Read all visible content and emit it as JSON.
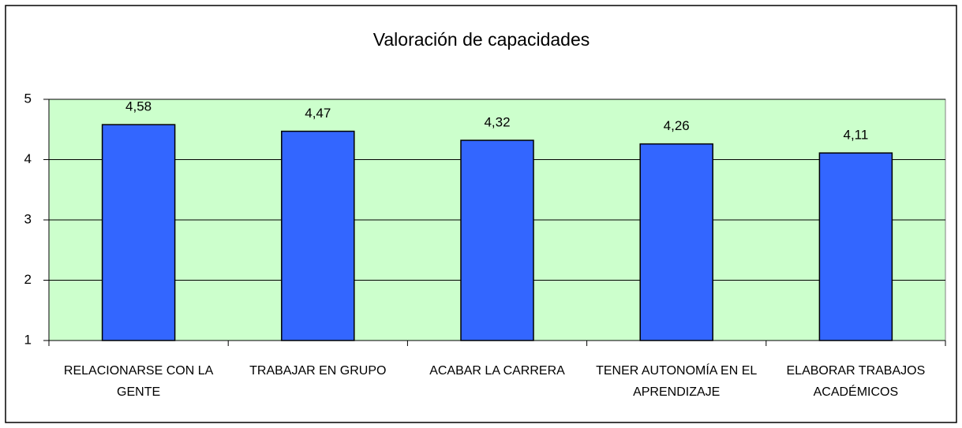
{
  "chart_data": {
    "type": "bar",
    "title": "Valoración de capacidades",
    "categories": [
      "RELACIONARSE CON LA GENTE",
      "TRABAJAR EN GRUPO",
      "ACABAR LA CARRERA",
      "TENER AUTONOMÍA EN EL APRENDIZAJE",
      "ELABORAR TRABAJOS ACADÉMICOS"
    ],
    "values": [
      4.58,
      4.47,
      4.32,
      4.26,
      4.11
    ],
    "value_labels": [
      "4,58",
      "4,47",
      "4,32",
      "4,26",
      "4,11"
    ],
    "color": "#3366ff",
    "plot_background": "#ccffcc",
    "ylim": [
      1,
      5
    ],
    "yticks": [
      1,
      2,
      3,
      4,
      5
    ],
    "grid": true
  }
}
